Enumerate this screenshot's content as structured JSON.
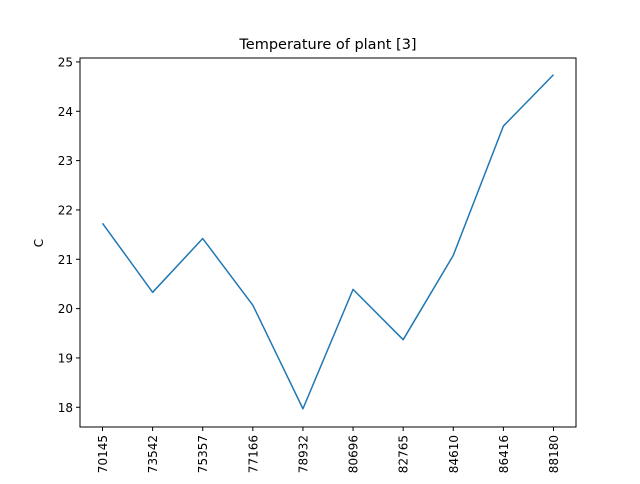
{
  "chart_data": {
    "type": "line",
    "title": "Temperature of plant [3]",
    "xlabel": "",
    "ylabel": "C",
    "categories": [
      "70145",
      "73542",
      "75357",
      "77166",
      "78932",
      "80696",
      "82765",
      "84610",
      "86416",
      "88180"
    ],
    "series": [
      {
        "values": [
          21.73,
          20.33,
          21.42,
          20.07,
          17.97,
          20.39,
          19.37,
          21.08,
          23.7,
          24.74
        ]
      }
    ],
    "yticks": [
      18,
      19,
      20,
      21,
      22,
      23,
      24,
      25
    ],
    "ylim": [
      17.6,
      25.08
    ],
    "grid": false,
    "colors": {
      "line": "#1f77b4",
      "axes": "#000000"
    }
  }
}
